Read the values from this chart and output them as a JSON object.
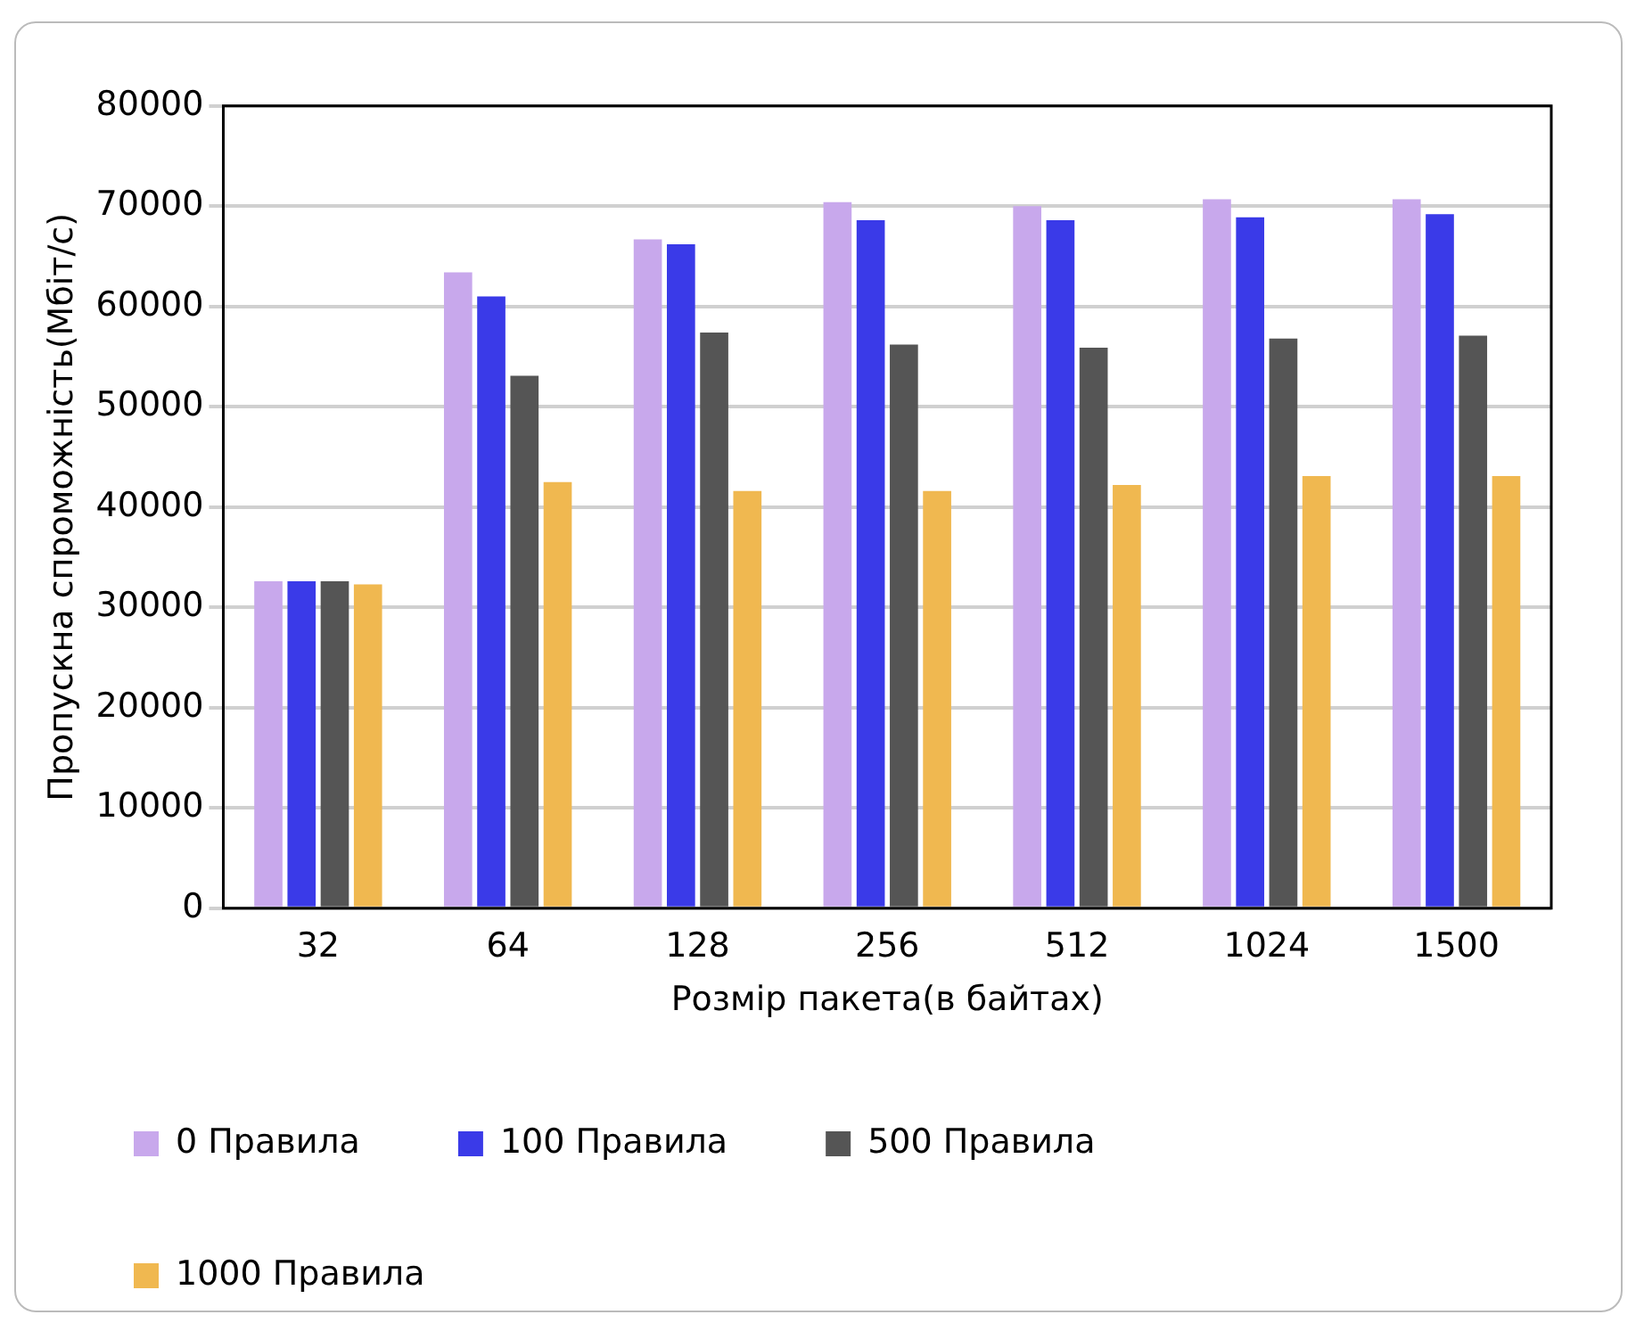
{
  "chart_data": {
    "type": "bar",
    "xlabel": "Розмір пакета(в байтах)",
    "ylabel": "Пропускна спроможність(Мбіт/с)",
    "categories": [
      "32",
      "64",
      "128",
      "256",
      "512",
      "1024",
      "1500"
    ],
    "series": [
      {
        "name": "0 Правила",
        "color": "#c8a8ec",
        "values": [
          32600,
          63400,
          66700,
          70400,
          70000,
          70700,
          70700
        ]
      },
      {
        "name": "100 Правила",
        "color": "#3a3ae8",
        "values": [
          32600,
          61000,
          66200,
          68600,
          68600,
          68900,
          69200
        ]
      },
      {
        "name": "500 Правила",
        "color": "#555555",
        "values": [
          32600,
          53100,
          57400,
          56200,
          55900,
          56800,
          57100
        ]
      },
      {
        "name": "1000 Правила",
        "color": "#f0b850",
        "values": [
          32300,
          42500,
          41600,
          41600,
          42200,
          43100,
          43100
        ]
      }
    ],
    "ylim": [
      0,
      80000
    ],
    "yticks": [
      0,
      10000,
      20000,
      30000,
      40000,
      50000,
      60000,
      70000,
      80000
    ],
    "grid": "y",
    "legend": "bottom"
  }
}
